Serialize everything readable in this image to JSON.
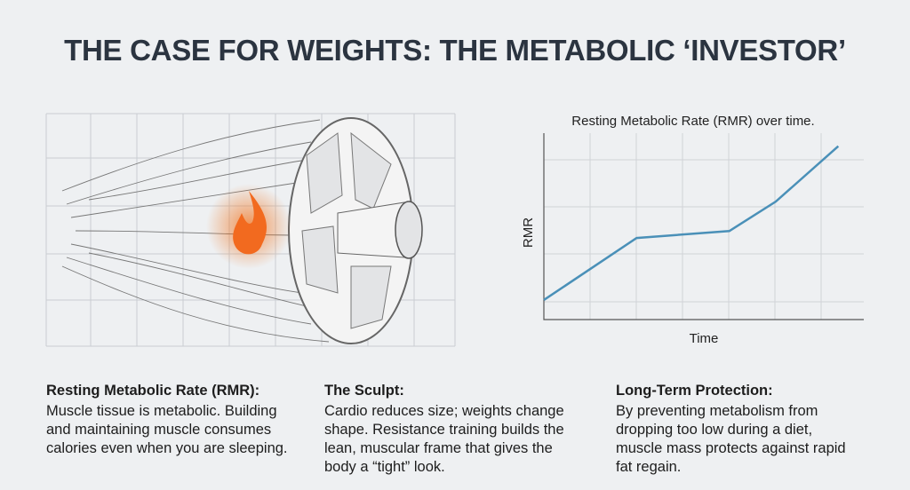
{
  "title": "THE CASE FOR WEIGHTS: THE METABOLIC ‘INVESTOR’",
  "columns": [
    {
      "heading": "Resting Metabolic Rate (RMR):",
      "body": "Muscle tissue is metabolic. Building and maintaining muscle consumes calories even when you are sleeping."
    },
    {
      "heading": "The Sculpt:",
      "body": "Cardio reduces size; weights change shape. Resistance training builds the lean, muscular frame that gives the body a “tight” look."
    },
    {
      "heading": "Long-Term Protection:",
      "body": "By preventing metabolism from dropping too low during a diet, muscle mass protects against rapid fat regain."
    }
  ],
  "chart_data": {
    "type": "line",
    "title": "Resting Metabolic Rate (RMR) over time.",
    "x_label": "Time",
    "y_label": "RMR",
    "x": [
      0,
      2,
      4,
      5,
      6.35
    ],
    "y": [
      0.42,
      1.75,
      1.9,
      2.53,
      3.72
    ],
    "xlim": [
      0,
      6.9
    ],
    "ylim": [
      0,
      4
    ],
    "color": "#4a90b8"
  }
}
